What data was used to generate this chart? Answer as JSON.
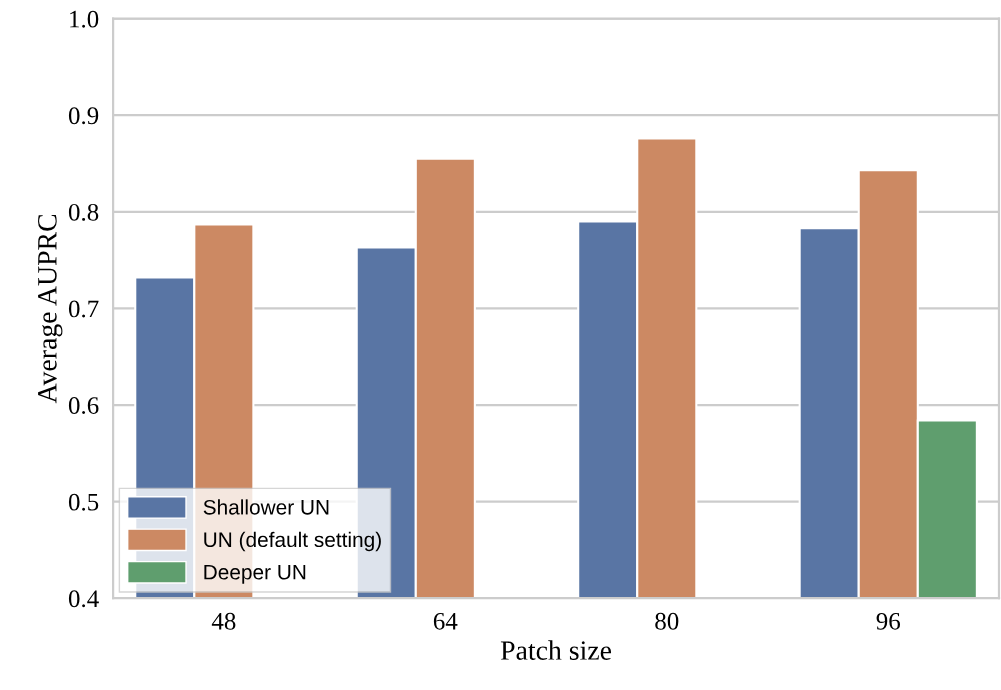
{
  "chart_data": {
    "type": "bar",
    "xlabel": "Patch size",
    "ylabel": "Average AUPRC",
    "categories": [
      "48",
      "64",
      "80",
      "96"
    ],
    "series": [
      {
        "name": "Shallower UN",
        "color": "#5975a4",
        "values": [
          0.732,
          0.763,
          0.79,
          0.783
        ]
      },
      {
        "name": "UN (default setting)",
        "color": "#cc8963",
        "values": [
          0.787,
          0.855,
          0.876,
          0.843
        ]
      },
      {
        "name": "Deeper UN",
        "color": "#5f9e6e",
        "values": [
          null,
          null,
          null,
          0.584
        ]
      }
    ],
    "ylim": [
      0.4,
      1.0
    ],
    "yticks": [
      0.4,
      0.5,
      0.6,
      0.7,
      0.8,
      0.9,
      {
        "value": 1.0,
        "label": "1.0"
      }
    ],
    "grid": "y",
    "legend": "bottom left"
  }
}
